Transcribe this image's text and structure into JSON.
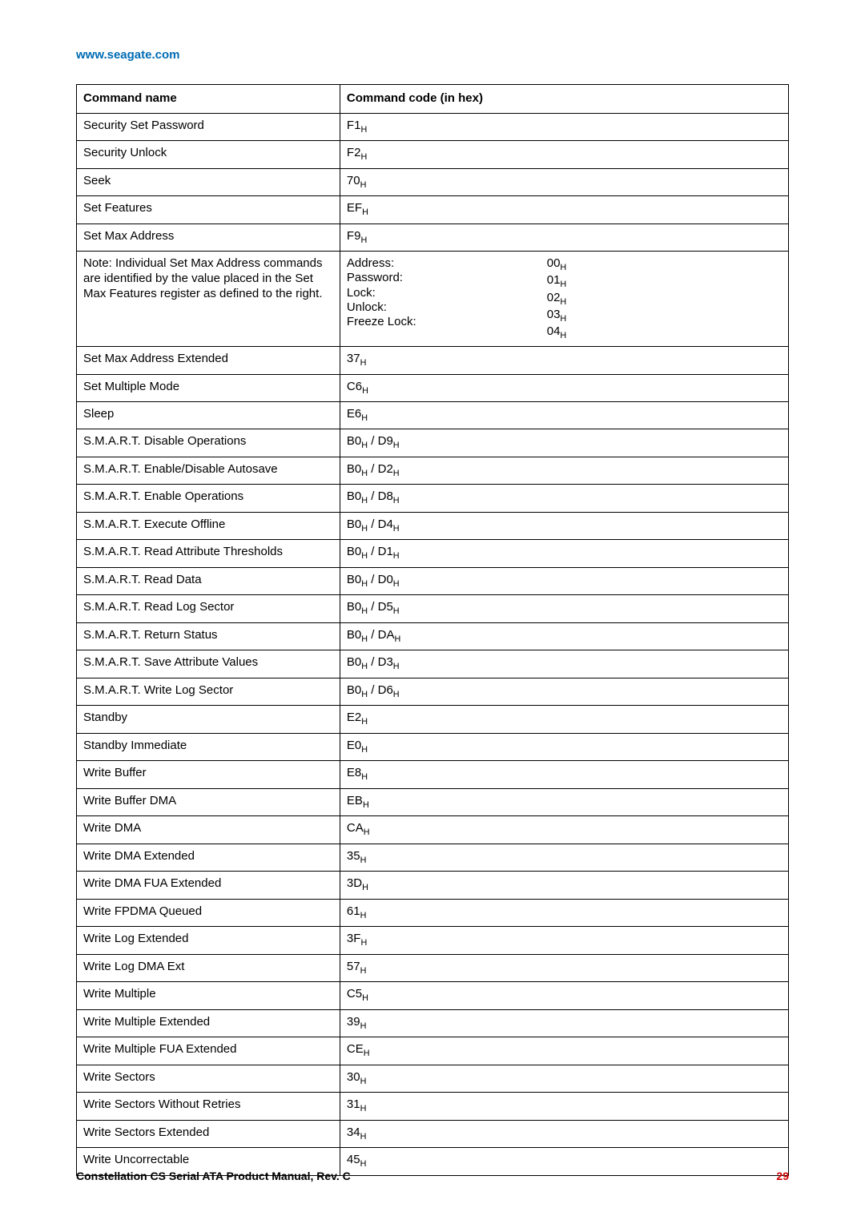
{
  "header": {
    "site_url": "www.seagate.com",
    "site_url_color": "#006bb4"
  },
  "table": {
    "headers": {
      "name": "Command name",
      "code": "Command code (in hex)"
    },
    "hex_suffix": "H",
    "note": {
      "text": "Note: Individual Set Max Address commands are identified by the value placed in the Set Max Features register as defined to the right.",
      "items": [
        {
          "label": "Address:",
          "code": "00"
        },
        {
          "label": "Password:",
          "code": "01"
        },
        {
          "label": "Lock:",
          "code": "02"
        },
        {
          "label": "Unlock:",
          "code": "03"
        },
        {
          "label": "Freeze Lock:",
          "code": "04"
        }
      ]
    },
    "rows": [
      {
        "name": "Security Set Password",
        "codes": [
          "F1"
        ]
      },
      {
        "name": "Security Unlock",
        "codes": [
          "F2"
        ]
      },
      {
        "name": "Seek",
        "codes": [
          "70"
        ]
      },
      {
        "name": "Set Features",
        "codes": [
          "EF"
        ]
      },
      {
        "name": "Set Max Address",
        "codes": [
          "F9"
        ]
      },
      {
        "name": "__NOTE__"
      },
      {
        "name": "Set Max Address Extended",
        "codes": [
          "37"
        ]
      },
      {
        "name": "Set Multiple Mode",
        "codes": [
          "C6"
        ]
      },
      {
        "name": "Sleep",
        "codes": [
          "E6"
        ]
      },
      {
        "name": "S.M.A.R.T. Disable Operations",
        "codes": [
          "B0",
          "D9"
        ]
      },
      {
        "name": "S.M.A.R.T. Enable/Disable Autosave",
        "codes": [
          "B0",
          "D2"
        ]
      },
      {
        "name": "S.M.A.R.T. Enable Operations",
        "codes": [
          "B0",
          "D8"
        ]
      },
      {
        "name": "S.M.A.R.T. Execute Offline",
        "codes": [
          "B0",
          "D4"
        ]
      },
      {
        "name": "S.M.A.R.T. Read Attribute Thresholds",
        "codes": [
          "B0",
          "D1"
        ]
      },
      {
        "name": "S.M.A.R.T. Read Data",
        "codes": [
          "B0",
          "D0"
        ]
      },
      {
        "name": "S.M.A.R.T. Read Log Sector",
        "codes": [
          "B0",
          "D5"
        ]
      },
      {
        "name": "S.M.A.R.T. Return Status",
        "codes": [
          "B0",
          "DA"
        ]
      },
      {
        "name": "S.M.A.R.T. Save Attribute Values",
        "codes": [
          "B0",
          "D3"
        ]
      },
      {
        "name": "S.M.A.R.T. Write Log Sector",
        "codes": [
          "B0",
          "D6"
        ]
      },
      {
        "name": "Standby",
        "codes": [
          "E2"
        ]
      },
      {
        "name": "Standby Immediate",
        "codes": [
          "E0"
        ]
      },
      {
        "name": "Write Buffer",
        "codes": [
          "E8"
        ]
      },
      {
        "name": "Write Buffer DMA",
        "codes": [
          "EB"
        ]
      },
      {
        "name": "Write DMA",
        "codes": [
          "CA"
        ]
      },
      {
        "name": "Write DMA Extended",
        "codes": [
          "35"
        ]
      },
      {
        "name": "Write DMA FUA Extended",
        "codes": [
          "3D"
        ]
      },
      {
        "name": "Write FPDMA Queued",
        "codes": [
          "61"
        ]
      },
      {
        "name": "Write Log Extended",
        "codes": [
          "3F"
        ]
      },
      {
        "name": "Write Log DMA Ext",
        "codes": [
          "57"
        ]
      },
      {
        "name": "Write Multiple",
        "codes": [
          "C5"
        ]
      },
      {
        "name": "Write Multiple Extended",
        "codes": [
          "39"
        ]
      },
      {
        "name": "Write Multiple FUA Extended",
        "codes": [
          "CE"
        ]
      },
      {
        "name": "Write Sectors",
        "codes": [
          "30"
        ]
      },
      {
        "name": "Write Sectors Without Retries",
        "codes": [
          "31"
        ]
      },
      {
        "name": "Write Sectors Extended",
        "codes": [
          "34"
        ]
      },
      {
        "name": "Write Uncorrectable",
        "codes": [
          "45"
        ]
      }
    ]
  },
  "footer": {
    "manual_title": "Constellation CS Serial ATA Product Manual, Rev. C",
    "page_number": "29",
    "page_number_color": "#cc0000"
  }
}
